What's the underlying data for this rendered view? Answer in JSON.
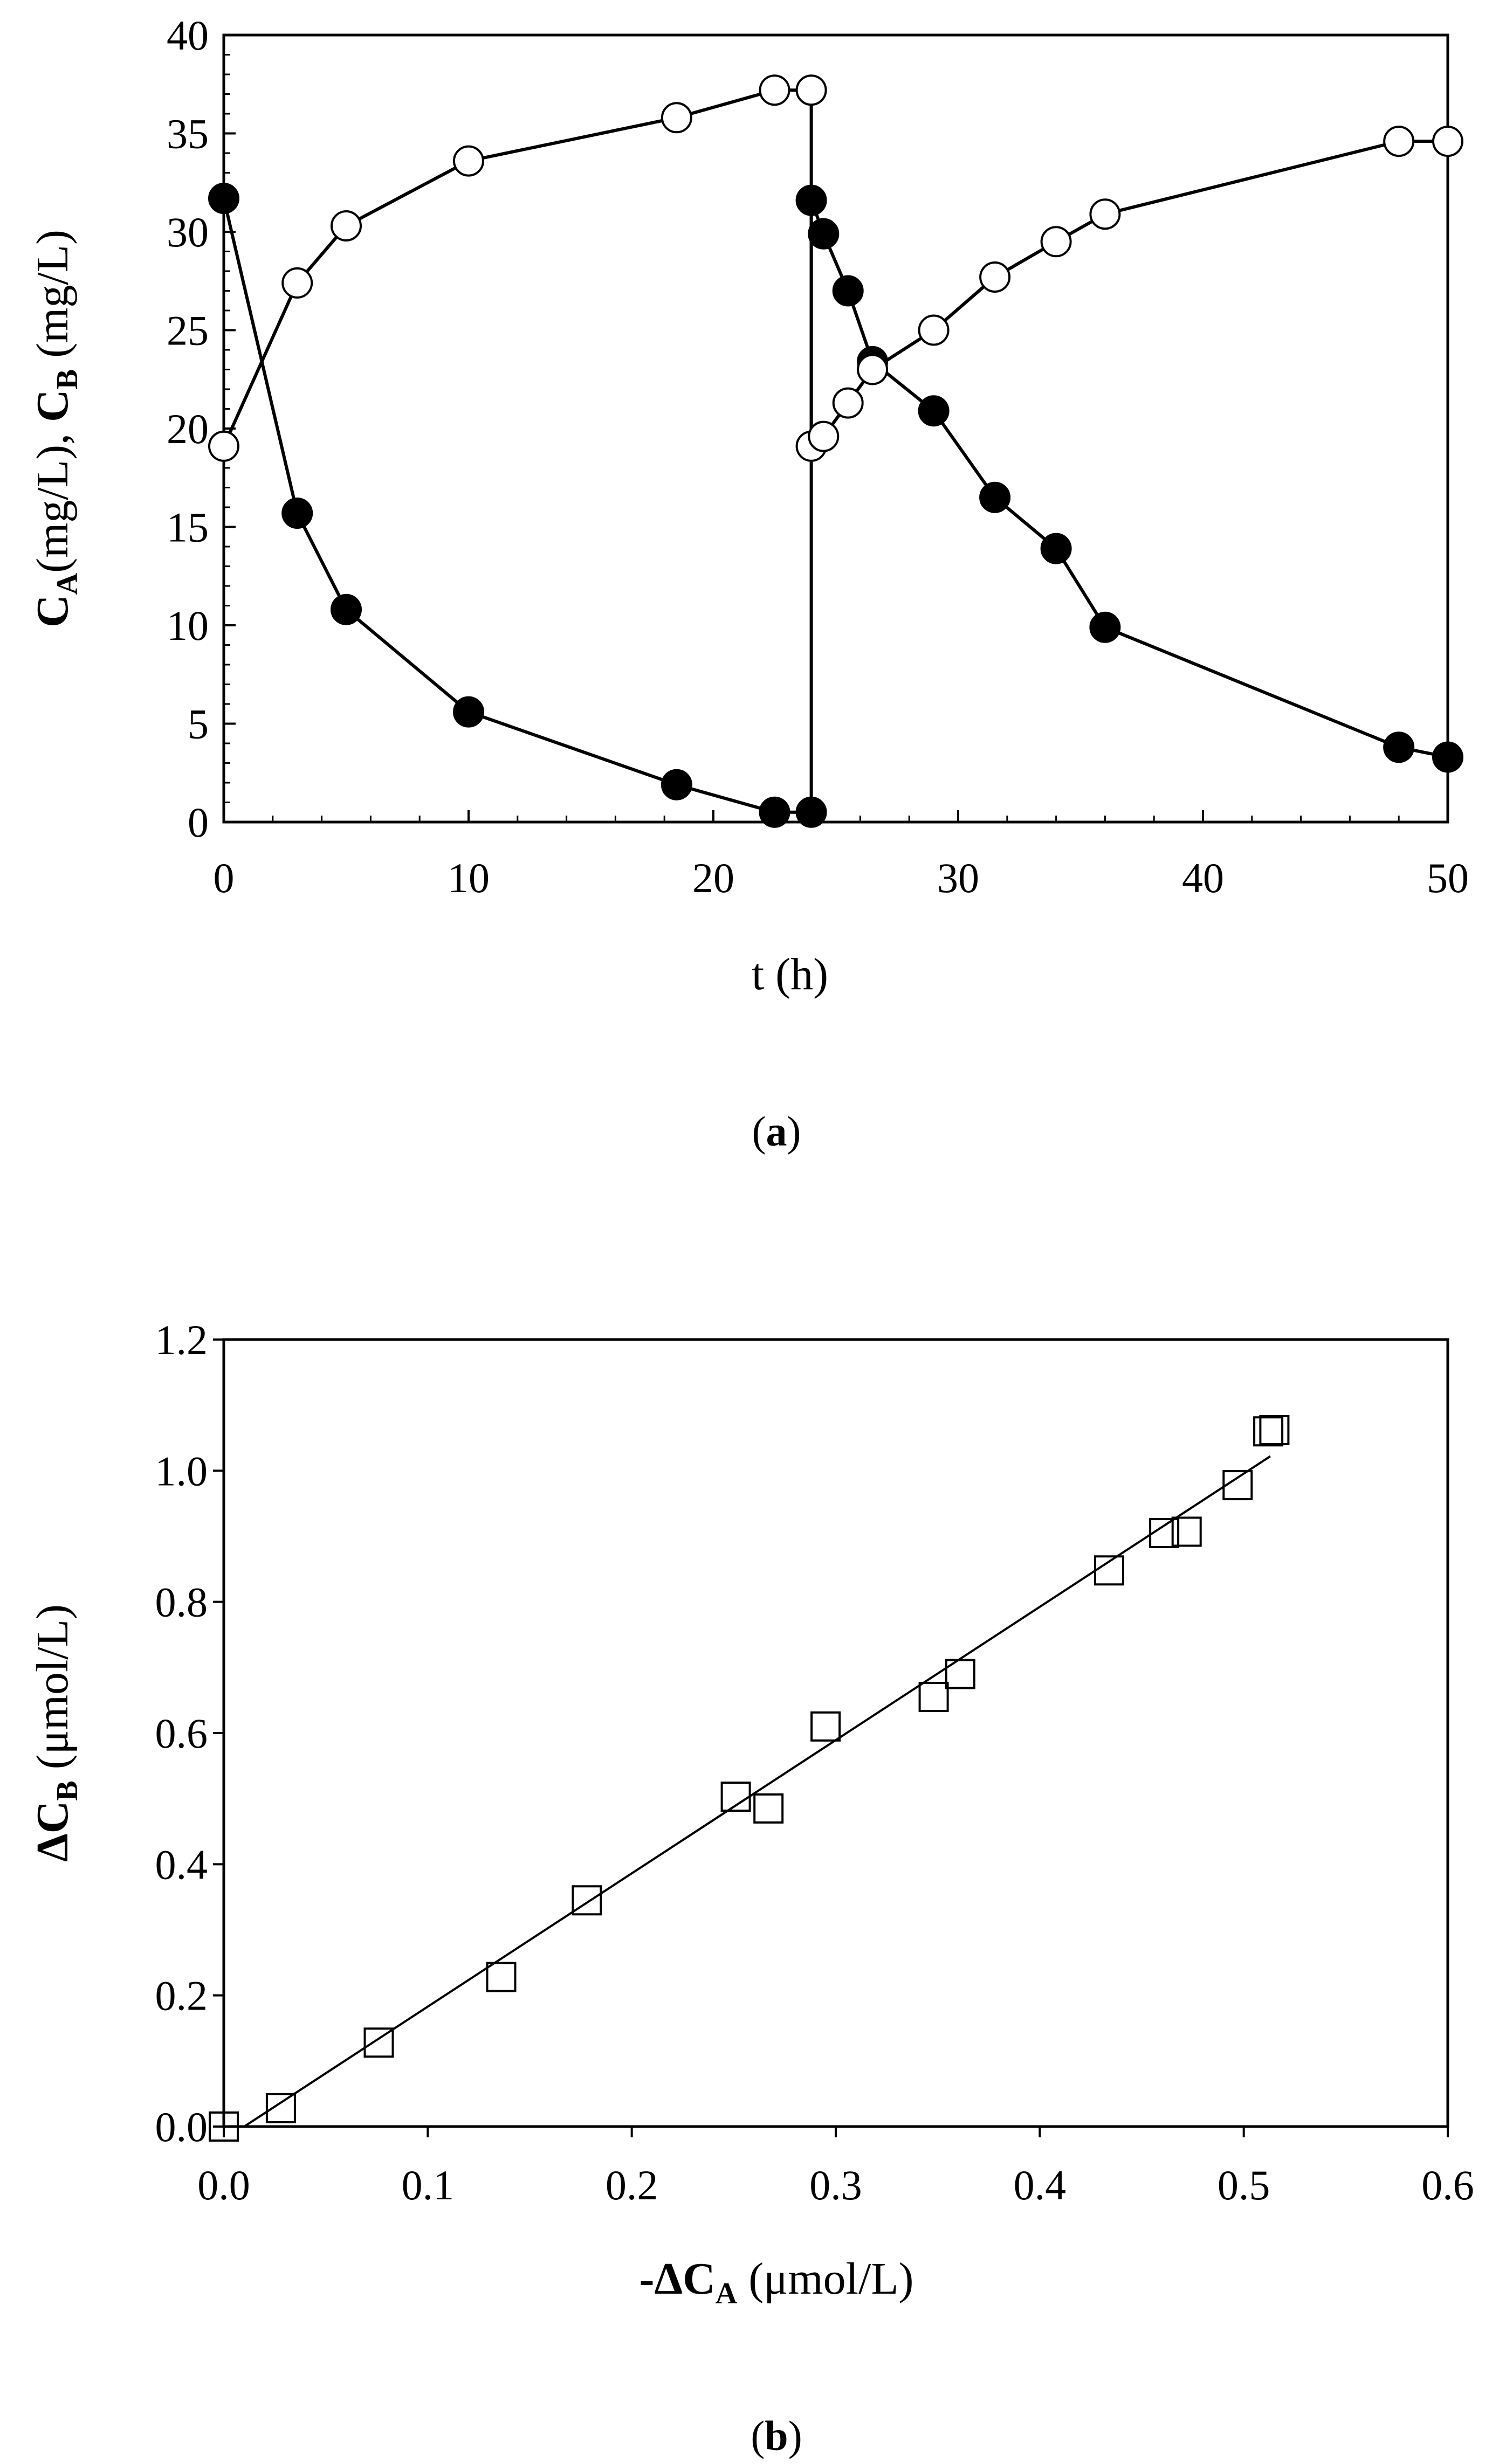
{
  "chart_data": [
    {
      "type": "line",
      "panel_label": "a",
      "title": "",
      "xlabel": "t (h)",
      "ylabel": {
        "part1": "C",
        "sub1": "A",
        "part2": "(mg/L), ",
        "part3": "C",
        "sub2": "B",
        "part4": " (mg/L)"
      },
      "xlim": [
        0,
        50
      ],
      "ylim": [
        0,
        40
      ],
      "xticks": [
        0,
        10,
        20,
        30,
        40,
        50
      ],
      "yticks": [
        0,
        5,
        10,
        15,
        20,
        25,
        30,
        35,
        40
      ],
      "grid": false,
      "series": [
        {
          "name": "C_A",
          "marker": "filled-circle",
          "points": [
            [
              0,
              31.7
            ],
            [
              3,
              15.7
            ],
            [
              5,
              10.8
            ],
            [
              10,
              5.6
            ],
            [
              18.5,
              1.9
            ],
            [
              22.5,
              0.5
            ],
            [
              24,
              0.5
            ],
            [
              24,
              31.6
            ],
            [
              24.5,
              29.9
            ],
            [
              25.5,
              27.0
            ],
            [
              26.5,
              23.4
            ],
            [
              29,
              20.9
            ],
            [
              31.5,
              16.5
            ],
            [
              34,
              13.9
            ],
            [
              36,
              9.9
            ],
            [
              48,
              3.8
            ],
            [
              50,
              3.3
            ]
          ]
        },
        {
          "name": "C_B",
          "marker": "open-circle",
          "points": [
            [
              0,
              19.1
            ],
            [
              3,
              27.4
            ],
            [
              5,
              30.3
            ],
            [
              10,
              33.6
            ],
            [
              18.5,
              35.8
            ],
            [
              22.5,
              37.2
            ],
            [
              24,
              37.2
            ],
            [
              24,
              19.1
            ],
            [
              24.5,
              19.6
            ],
            [
              25.5,
              21.3
            ],
            [
              26.5,
              23.0
            ],
            [
              29,
              25.0
            ],
            [
              31.5,
              27.7
            ],
            [
              34,
              29.5
            ],
            [
              36,
              30.9
            ],
            [
              48,
              34.6
            ],
            [
              50,
              34.6
            ]
          ]
        }
      ]
    },
    {
      "type": "scatter",
      "panel_label": "b",
      "title": "",
      "xlabel": {
        "prefix": "-ΔC",
        "sub": "A",
        "suffix": " (μmol/L)"
      },
      "ylabel": {
        "prefix": "ΔC",
        "sub": "B",
        "suffix": " (μmol/L)"
      },
      "xlim": [
        0,
        0.6
      ],
      "ylim": [
        0,
        1.2
      ],
      "xticks": [
        "0.0",
        "0.1",
        "0.2",
        "0.3",
        "0.4",
        "0.5",
        "0.6"
      ],
      "yticks": [
        "0.0",
        "0.2",
        "0.4",
        "0.6",
        "0.8",
        "1.0",
        "1.2"
      ],
      "grid": false,
      "series": [
        {
          "name": "ΔC_B vs -ΔC_A",
          "marker": "open-square",
          "points": [
            [
              0.0,
              0.0
            ],
            [
              0.028,
              0.028
            ],
            [
              0.076,
              0.128
            ],
            [
              0.136,
              0.228
            ],
            [
              0.178,
              0.345
            ],
            [
              0.251,
              0.503
            ],
            [
              0.267,
              0.485
            ],
            [
              0.295,
              0.61
            ],
            [
              0.348,
              0.655
            ],
            [
              0.361,
              0.69
            ],
            [
              0.434,
              0.848
            ],
            [
              0.461,
              0.905
            ],
            [
              0.472,
              0.907
            ],
            [
              0.497,
              0.978
            ],
            [
              0.512,
              1.06
            ],
            [
              0.515,
              1.062
            ]
          ]
        }
      ],
      "fit_line": {
        "x": [
          0.01,
          0.513
        ],
        "y": [
          0.0,
          1.022
        ]
      }
    }
  ]
}
